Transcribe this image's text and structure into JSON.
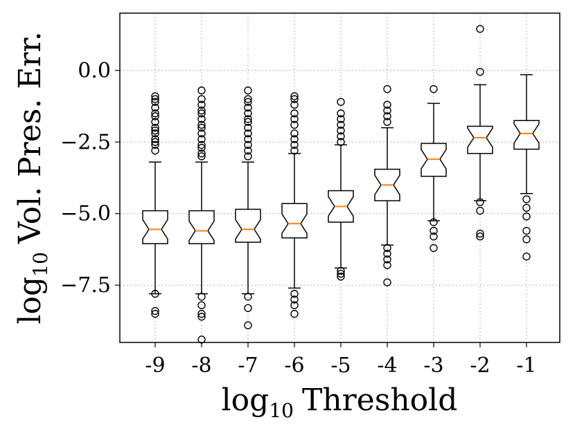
{
  "chart_data": {
    "type": "boxplot",
    "notched": true,
    "xlabel": "Threshold",
    "xlabel_prefix": "log",
    "xlabel_subscript": "10",
    "ylabel": "Vol. Pres. Err.",
    "ylabel_prefix": "log",
    "ylabel_subscript": "10",
    "ylim": [
      -9.5,
      2.0
    ],
    "yticks": [
      0.0,
      -2.5,
      -5.0,
      -7.5
    ],
    "ytick_labels": [
      "0.0",
      "−2.5",
      "−5.0",
      "−7.5"
    ],
    "categories": [
      "-9",
      "-8",
      "-7",
      "-6",
      "-5",
      "-4",
      "-3",
      "-2",
      "-1"
    ],
    "grid": true,
    "colors": {
      "median": "#ff7f0e",
      "box": "#000000",
      "grid": "#b0b0b0"
    },
    "boxes": [
      {
        "label": "-9",
        "whislo": -7.8,
        "q1": -6.05,
        "med": -5.55,
        "q3": -4.9,
        "whishi": -3.2,
        "fliers": [
          -0.9,
          -1.0,
          -1.1,
          -1.3,
          -1.5,
          -1.6,
          -1.8,
          -2.0,
          -2.1,
          -2.2,
          -2.4,
          -2.5,
          -2.6,
          -2.8,
          -7.8,
          -8.4,
          -8.5
        ]
      },
      {
        "label": "-8",
        "whislo": -7.8,
        "q1": -6.05,
        "med": -5.6,
        "q3": -4.9,
        "whishi": -3.2,
        "fliers": [
          -0.7,
          -1.0,
          -1.2,
          -1.4,
          -1.5,
          -1.7,
          -1.9,
          -2.0,
          -2.2,
          -2.4,
          -2.6,
          -2.7,
          -2.9,
          -3.0,
          -7.9,
          -8.2,
          -8.5,
          -8.6,
          -9.4
        ]
      },
      {
        "label": "-7",
        "whislo": -7.8,
        "q1": -6.0,
        "med": -5.55,
        "q3": -4.85,
        "whishi": -3.2,
        "fliers": [
          -0.7,
          -1.0,
          -1.1,
          -1.3,
          -1.5,
          -1.7,
          -1.8,
          -2.0,
          -2.2,
          -2.4,
          -2.6,
          -2.8,
          -3.0,
          -7.9,
          -8.3,
          -8.9
        ]
      },
      {
        "label": "-6",
        "whislo": -7.6,
        "q1": -5.85,
        "med": -5.35,
        "q3": -4.65,
        "whishi": -2.9,
        "fliers": [
          -0.9,
          -1.0,
          -1.2,
          -1.5,
          -1.7,
          -1.9,
          -2.2,
          -2.4,
          -2.6,
          -2.8,
          -7.8,
          -8.0,
          -8.2,
          -8.5
        ]
      },
      {
        "label": "-5",
        "whislo": -6.9,
        "q1": -5.3,
        "med": -4.75,
        "q3": -4.2,
        "whishi": -2.6,
        "fliers": [
          -1.1,
          -1.5,
          -1.7,
          -1.9,
          -2.1,
          -2.3,
          -2.5,
          -7.0,
          -7.1,
          -7.2
        ]
      },
      {
        "label": "-4",
        "whislo": -6.1,
        "q1": -4.55,
        "med": -4.0,
        "q3": -3.45,
        "whishi": -2.0,
        "fliers": [
          -0.65,
          -1.2,
          -1.4,
          -1.6,
          -1.8,
          -6.2,
          -6.4,
          -6.6,
          -6.8,
          -7.4
        ]
      },
      {
        "label": "-3",
        "whislo": -5.25,
        "q1": -3.7,
        "med": -3.1,
        "q3": -2.55,
        "whishi": -1.15,
        "fliers": [
          -0.65,
          -5.3,
          -5.6,
          -5.8,
          -6.2
        ]
      },
      {
        "label": "-2",
        "whislo": -4.55,
        "q1": -2.9,
        "med": -2.35,
        "q3": -1.95,
        "whishi": -0.5,
        "fliers": [
          1.45,
          -0.05,
          -4.6,
          -4.9,
          -5.7,
          -5.8
        ]
      },
      {
        "label": "-1",
        "whislo": -4.3,
        "q1": -2.75,
        "med": -2.2,
        "q3": -1.75,
        "whishi": -0.15,
        "fliers": [
          -4.5,
          -4.8,
          -5.1,
          -5.6,
          -5.9,
          -6.5
        ]
      }
    ]
  }
}
